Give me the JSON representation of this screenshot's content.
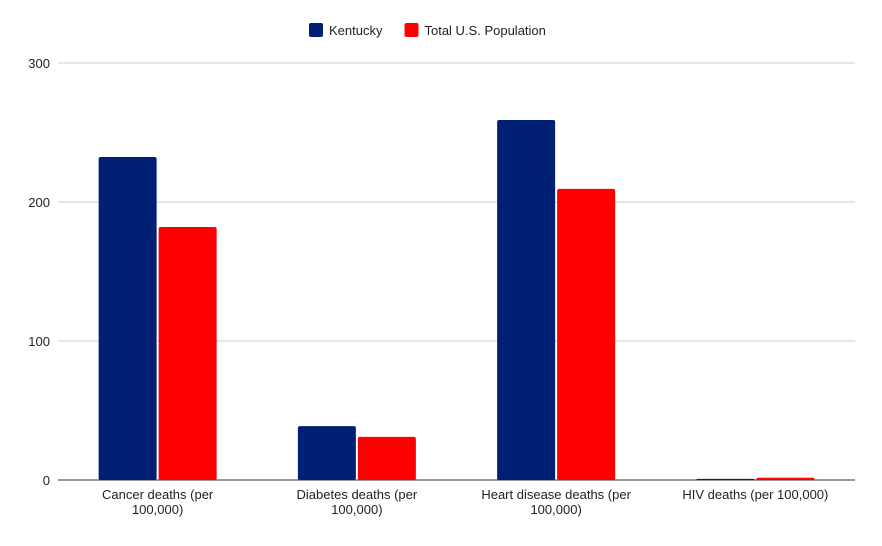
{
  "chart_data": {
    "type": "bar",
    "title": "",
    "xlabel": "",
    "ylabel": "",
    "categories": [
      [
        "Cancer deaths (per",
        "100,000)"
      ],
      [
        "Diabetes deaths (per",
        "100,000)"
      ],
      [
        "Heart disease deaths (per",
        "100,000)"
      ],
      [
        "HIV deaths (per 100,000)"
      ]
    ],
    "series": [
      {
        "name": "Kentucky",
        "color": "#002075",
        "values": [
          232.4,
          38.8,
          259,
          0.8
        ]
      },
      {
        "name": "Total U.S. Population",
        "color": "#ff0000",
        "values": [
          182,
          31,
          209.4,
          1.6
        ]
      }
    ],
    "ylim": [
      0,
      300
    ],
    "yticks": [
      0,
      100,
      200,
      300
    ],
    "grid": true,
    "legend_position": "top"
  }
}
